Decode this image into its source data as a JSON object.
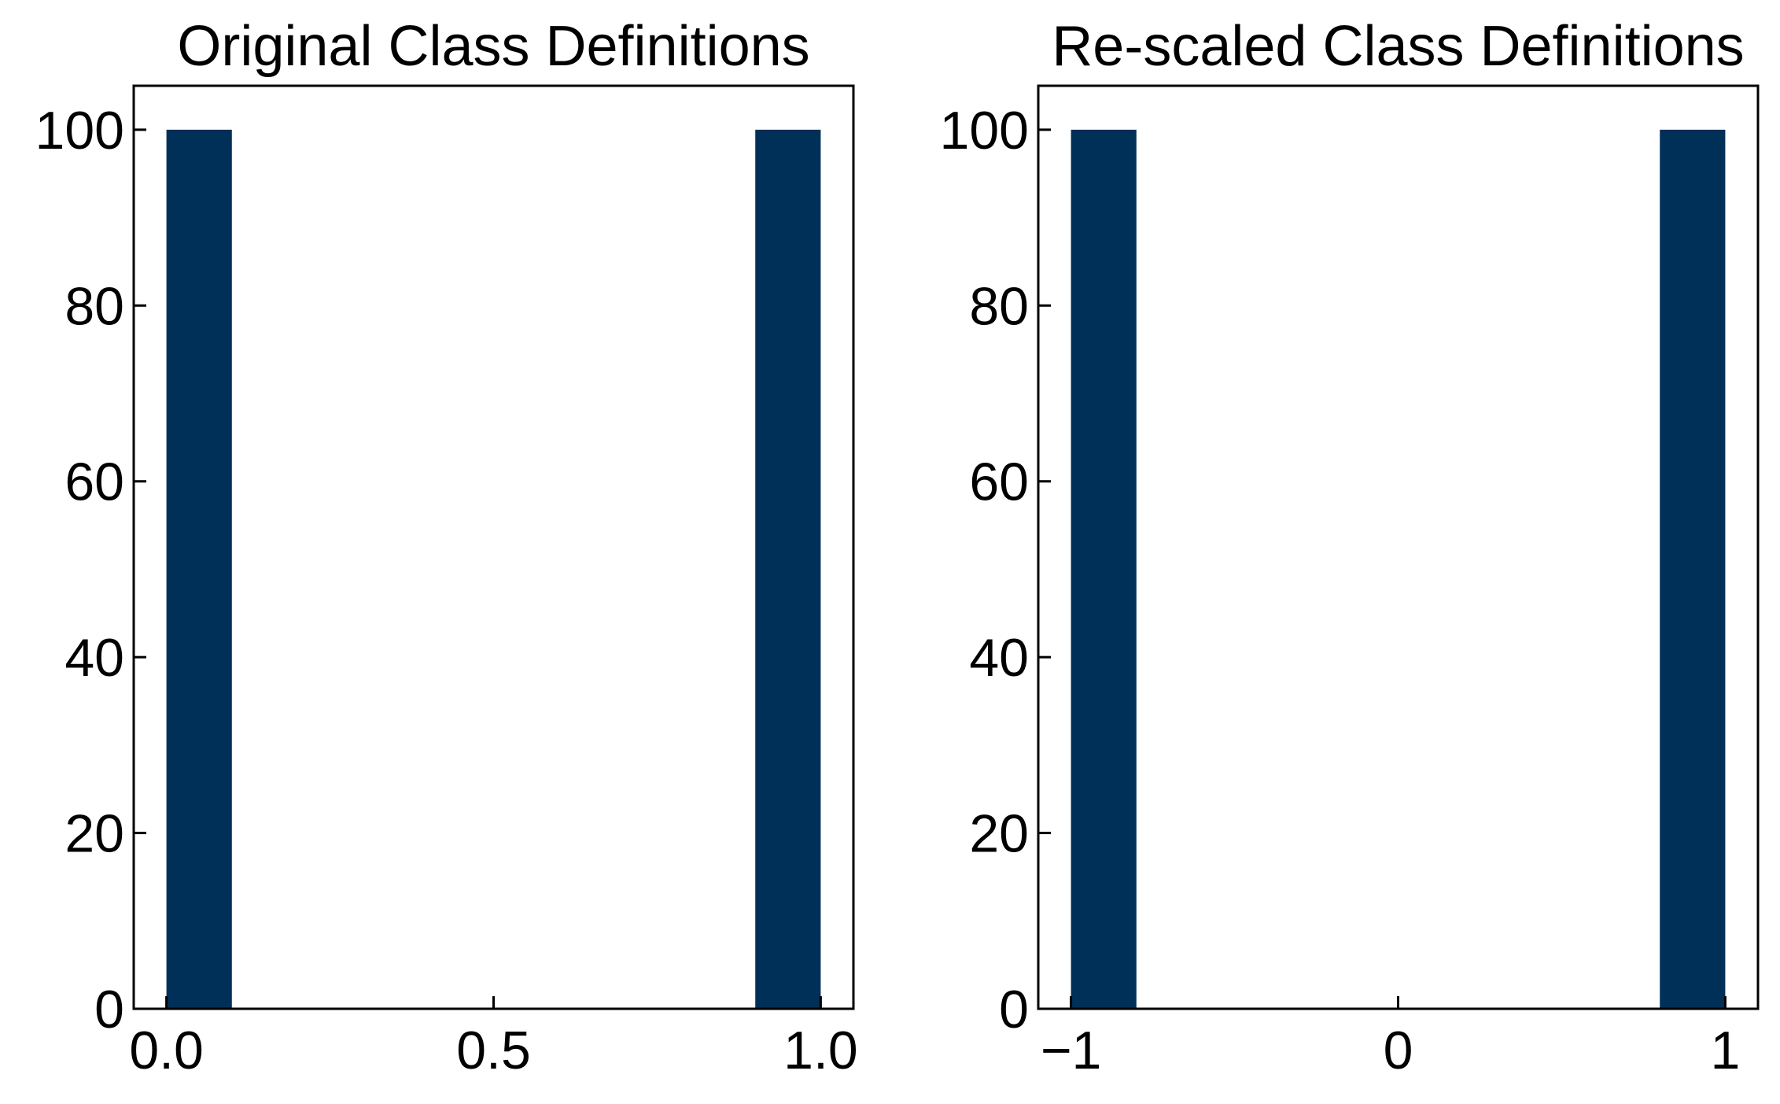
{
  "colors": {
    "bar": "#003057"
  },
  "chart_data": [
    {
      "type": "bar",
      "title": "Original Class Definitions",
      "bars": [
        {
          "x0": 0.0,
          "x1": 0.1,
          "value": 100
        },
        {
          "x0": 0.9,
          "x1": 1.0,
          "value": 100
        }
      ],
      "xlim": [
        -0.05,
        1.05
      ],
      "ylim": [
        0,
        105
      ],
      "xticks": [
        {
          "value": 0.0,
          "label": "0.0"
        },
        {
          "value": 0.5,
          "label": "0.5"
        },
        {
          "value": 1.0,
          "label": "1.0"
        }
      ],
      "yticks": [
        {
          "value": 0,
          "label": "0"
        },
        {
          "value": 20,
          "label": "20"
        },
        {
          "value": 40,
          "label": "40"
        },
        {
          "value": 60,
          "label": "60"
        },
        {
          "value": 80,
          "label": "80"
        },
        {
          "value": 100,
          "label": "100"
        }
      ],
      "grid": false
    },
    {
      "type": "bar",
      "title": "Re-scaled Class Definitions",
      "bars": [
        {
          "x0": -1.0,
          "x1": -0.8,
          "value": 100
        },
        {
          "x0": 0.8,
          "x1": 1.0,
          "value": 100
        }
      ],
      "xlim": [
        -1.1,
        1.1
      ],
      "ylim": [
        0,
        105
      ],
      "xticks": [
        {
          "value": -1,
          "label": "−1"
        },
        {
          "value": 0,
          "label": "0"
        },
        {
          "value": 1,
          "label": "1"
        }
      ],
      "yticks": [
        {
          "value": 0,
          "label": "0"
        },
        {
          "value": 20,
          "label": "20"
        },
        {
          "value": 40,
          "label": "40"
        },
        {
          "value": 60,
          "label": "60"
        },
        {
          "value": 80,
          "label": "80"
        },
        {
          "value": 100,
          "label": "100"
        }
      ],
      "grid": false
    }
  ]
}
